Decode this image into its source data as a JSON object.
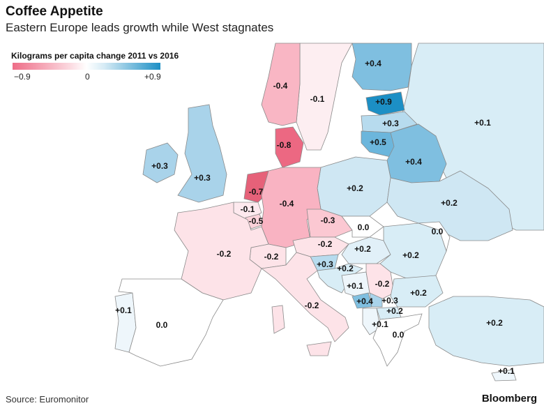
{
  "header": {
    "title": "Coffee Appetite",
    "subtitle": "Eastern Europe leads growth while West stagnates"
  },
  "legend": {
    "title": "Kilograms per capita change 2011 vs 2016",
    "min_label": "−0.9",
    "mid_label": "0",
    "max_label": "+0.9",
    "min_color": "#ee6d87",
    "max_color": "#1c8fc5"
  },
  "footer": {
    "source": "Source: Euromonitor",
    "brand": "Bloomberg"
  },
  "countries": [
    {
      "id": "finland",
      "label": "+0.4"
    },
    {
      "id": "sweden",
      "label": "-0.4"
    },
    {
      "id": "norway",
      "label": "-0.1"
    },
    {
      "id": "estonia",
      "label": "+0.9"
    },
    {
      "id": "latvia",
      "label": "+0.3"
    },
    {
      "id": "russia",
      "label": "+0.1"
    },
    {
      "id": "lithuania",
      "label": "+0.5"
    },
    {
      "id": "belarus",
      "label": "+0.4"
    },
    {
      "id": "ireland",
      "label": "+0.3"
    },
    {
      "id": "uk",
      "label": "+0.3"
    },
    {
      "id": "denmark",
      "label": "-0.8"
    },
    {
      "id": "netherlands",
      "label": "-0.7"
    },
    {
      "id": "poland",
      "label": "+0.2"
    },
    {
      "id": "ukraine",
      "label": "+0.2"
    },
    {
      "id": "belgium",
      "label": "-0.1"
    },
    {
      "id": "luxembourg",
      "label": "-0.5"
    },
    {
      "id": "germany",
      "label": "-0.4"
    },
    {
      "id": "czechia",
      "label": "-0.3"
    },
    {
      "id": "slovakia",
      "label": "0.0"
    },
    {
      "id": "moldova",
      "label": "0.0"
    },
    {
      "id": "austria",
      "label": "-0.2"
    },
    {
      "id": "france",
      "label": "-0.2"
    },
    {
      "id": "switzerland",
      "label": "-0.2"
    },
    {
      "id": "hungary",
      "label": "+0.2"
    },
    {
      "id": "romania",
      "label": "+0.2"
    },
    {
      "id": "slovenia",
      "label": "+0.3"
    },
    {
      "id": "croatia",
      "label": "+0.2"
    },
    {
      "id": "bosnia",
      "label": "+0.1"
    },
    {
      "id": "serbia",
      "label": "-0.2"
    },
    {
      "id": "bulgaria",
      "label": "+0.2"
    },
    {
      "id": "montenegro",
      "label": "+0.4"
    },
    {
      "id": "kosovo",
      "label": "+0.3"
    },
    {
      "id": "macedonia",
      "label": "+0.2"
    },
    {
      "id": "albania",
      "label": "+0.1"
    },
    {
      "id": "italy",
      "label": "-0.2"
    },
    {
      "id": "portugal",
      "label": "+0.1"
    },
    {
      "id": "spain",
      "label": "0.0"
    },
    {
      "id": "greece",
      "label": "0.0"
    },
    {
      "id": "turkey",
      "label": "+0.2"
    },
    {
      "id": "cyprus",
      "label": "+0.1"
    }
  ]
}
